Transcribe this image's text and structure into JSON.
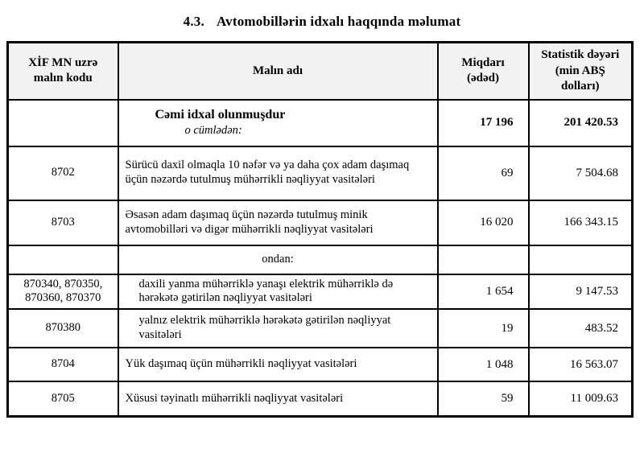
{
  "page": {
    "title_number": "4.3.",
    "title_text": "Avtomobillərin idxalı haqqında məlumat"
  },
  "table": {
    "headers": {
      "code": "XİF MN uzrə\nmalın kodu",
      "name": "Malın adı",
      "qty": "Miqdarı\n(ədəd)",
      "value": "Statistik dəyəri\n(min ABŞ\ndolları)"
    },
    "rows": [
      {
        "code": "",
        "name": "Cəmi idxal olunmuşdur",
        "name2": "o cümlədən:",
        "qty": "17 196",
        "value": "201 420.53",
        "style": "total"
      },
      {
        "code": "8702",
        "name": "Sürücü daxil olmaqla 10 nəfər və ya daha çox adam daşımaq üçün nəzərdə tutulmuş mühərrikli nəqliyyat vasitələri",
        "qty": "69",
        "value": "7 504.68",
        "style": ""
      },
      {
        "code": "8703",
        "name": "Əsasən adam daşımaq üçün nəzərdə tutulmuş minik avtomobilləri və digər mühərrikli nəqliyyat vasitələri",
        "qty": "16 020",
        "value": "166 343.15",
        "style": ""
      },
      {
        "code": "",
        "name": "ondan:",
        "qty": "",
        "value": "",
        "style": "subheader"
      },
      {
        "code": "870340, 870350,\n870360, 870370",
        "name": "daxili yanma mühərriklə yanaşı elektrik mühərriklə də hərəkətə gətirilən nəqliyyat vasitələri",
        "qty": "1 654",
        "value": "9 147.53",
        "style": "indent"
      },
      {
        "code": "870380",
        "name": "yalnız elektrik mühərriklə hərəkətə gətirilən nəqliyyat vasitələri",
        "qty": "19",
        "value": "483.52",
        "style": "indent"
      },
      {
        "code": "8704",
        "name": "Yük daşımaq üçün mühərrikli nəqliyyat vasitələri",
        "qty": "1 048",
        "value": "16 563.07",
        "style": ""
      },
      {
        "code": "8705",
        "name": "Xüsusi təyinatlı mühərrikli nəqliyyat vasitələri",
        "qty": "59",
        "value": "11 009.63",
        "style": ""
      }
    ]
  }
}
